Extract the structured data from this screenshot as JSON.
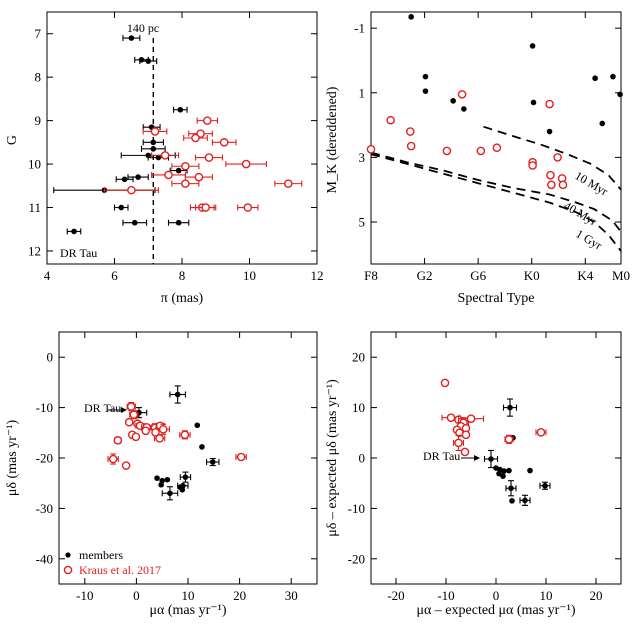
{
  "chart_data": [
    {
      "type": "scatter",
      "panel": "top-left",
      "xlabel": "π (mas)",
      "ylabel": "G",
      "xlim": [
        4,
        12
      ],
      "ylim": [
        12.3,
        6.5
      ],
      "y_inverted": true,
      "xticks": [
        4,
        6,
        8,
        10,
        12
      ],
      "yticks": [
        7,
        8,
        9,
        10,
        11,
        12
      ],
      "vline": {
        "x": 7.15,
        "label": "140 pc"
      },
      "annotation": {
        "text": "DR Tau",
        "x": 4.8,
        "y": 11.55
      },
      "series": [
        {
          "name": "members",
          "color": "#000000",
          "marker": "filled",
          "points": [
            {
              "x": 6.5,
              "y": 7.1,
              "xerr": 0.25
            },
            {
              "x": 6.8,
              "y": 7.6,
              "xerr": 0.2
            },
            {
              "x": 7.0,
              "y": 7.63,
              "xerr": 0.25
            },
            {
              "x": 7.95,
              "y": 8.75,
              "xerr": 0.2
            },
            {
              "x": 7.1,
              "y": 9.15,
              "xerr": 0.25
            },
            {
              "x": 7.15,
              "y": 9.5,
              "xerr": 0.3
            },
            {
              "x": 7.15,
              "y": 9.65,
              "xerr": 0.35
            },
            {
              "x": 7.0,
              "y": 9.8,
              "xerr": 0.8
            },
            {
              "x": 7.3,
              "y": 9.85,
              "xerr": 0.3
            },
            {
              "x": 7.9,
              "y": 10.15,
              "xerr": 0.25
            },
            {
              "x": 6.7,
              "y": 10.3,
              "xerr": 0.3
            },
            {
              "x": 6.3,
              "y": 10.35,
              "xerr": 0.25
            },
            {
              "x": 5.7,
              "y": 10.6,
              "xerr": 1.5
            },
            {
              "x": 6.2,
              "y": 11.0,
              "xerr": 0.2
            },
            {
              "x": 6.6,
              "y": 11.35,
              "xerr": 0.35
            },
            {
              "x": 7.9,
              "y": 11.35,
              "xerr": 0.3
            },
            {
              "x": 4.8,
              "y": 11.55,
              "xerr": 0.2
            }
          ]
        },
        {
          "name": "Kraus et al. 2017",
          "color": "#e0201f",
          "marker": "open",
          "points": [
            {
              "x": 8.75,
              "y": 9.0,
              "xerr": 0.3
            },
            {
              "x": 7.2,
              "y": 9.25,
              "xerr": 0.35
            },
            {
              "x": 8.55,
              "y": 9.3,
              "xerr": 0.35
            },
            {
              "x": 8.4,
              "y": 9.4,
              "xerr": 0.35
            },
            {
              "x": 9.25,
              "y": 9.5,
              "xerr": 0.35
            },
            {
              "x": 7.5,
              "y": 9.8,
              "xerr": 0.4
            },
            {
              "x": 8.8,
              "y": 9.85,
              "xerr": 0.4
            },
            {
              "x": 9.9,
              "y": 10.0,
              "xerr": 0.6
            },
            {
              "x": 8.1,
              "y": 10.05,
              "xerr": 0.4
            },
            {
              "x": 7.6,
              "y": 10.25,
              "xerr": 0.5
            },
            {
              "x": 8.5,
              "y": 10.3,
              "xerr": 0.4
            },
            {
              "x": 8.1,
              "y": 10.45,
              "xerr": 0.4
            },
            {
              "x": 11.15,
              "y": 10.45,
              "xerr": 0.4
            },
            {
              "x": 6.5,
              "y": 10.6,
              "xerr": 0.8
            },
            {
              "x": 8.6,
              "y": 11.0,
              "xerr": 0.35
            },
            {
              "x": 8.7,
              "y": 11.0,
              "xerr": 0.3
            },
            {
              "x": 9.95,
              "y": 11.0,
              "xerr": 0.3
            }
          ]
        }
      ]
    },
    {
      "type": "scatter",
      "panel": "top-right",
      "xlabel": "Spectral Type",
      "ylabel": "M_K (dereddened)",
      "xlim": [
        0,
        14
      ],
      "ylim": [
        6.3,
        -1.5
      ],
      "y_inverted": true,
      "xticks": [
        0,
        2,
        4,
        6,
        8,
        10,
        12,
        14
      ],
      "xticklabels": [
        "F8",
        "G2",
        "G6",
        "K0",
        "K4",
        "M0"
      ],
      "xticklabel_positions": [
        0,
        3,
        6,
        9,
        12,
        14
      ],
      "yticks": [
        -1,
        1,
        3,
        5
      ],
      "yticklabels": [
        "-1",
        "1",
        "3",
        "5"
      ],
      "isochrones": [
        {
          "label": "10 Myr",
          "points": [
            [
              6.3,
              2.05
            ],
            [
              8.0,
              2.35
            ],
            [
              9.5,
              2.6
            ],
            [
              11.0,
              2.9
            ],
            [
              12.3,
              3.2
            ],
            [
              13.3,
              3.55
            ],
            [
              14.0,
              4.0
            ]
          ]
        },
        {
          "label": "40 Myr",
          "points": [
            [
              0.0,
              2.85
            ],
            [
              2.0,
              3.15
            ],
            [
              4.0,
              3.4
            ],
            [
              6.0,
              3.7
            ],
            [
              8.0,
              3.95
            ],
            [
              10.0,
              4.15
            ],
            [
              11.5,
              4.4
            ],
            [
              12.5,
              4.6
            ],
            [
              13.5,
              4.95
            ],
            [
              14.0,
              5.3
            ]
          ]
        },
        {
          "label": "1 Gyr",
          "points": [
            [
              0.0,
              2.9
            ],
            [
              2.0,
              3.2
            ],
            [
              4.0,
              3.5
            ],
            [
              6.0,
              3.8
            ],
            [
              8.0,
              4.1
            ],
            [
              10.0,
              4.4
            ],
            [
              11.5,
              4.7
            ],
            [
              12.5,
              5.0
            ],
            [
              13.3,
              5.4
            ],
            [
              14.0,
              5.9
            ]
          ]
        }
      ],
      "series": [
        {
          "name": "members",
          "color": "#000000",
          "marker": "filled",
          "points": [
            {
              "x": 2.25,
              "y": -1.35
            },
            {
              "x": 3.05,
              "y": 0.5
            },
            {
              "x": 3.05,
              "y": 0.95
            },
            {
              "x": 4.6,
              "y": 1.25
            },
            {
              "x": 5.2,
              "y": 1.5
            },
            {
              "x": 9.05,
              "y": -0.45
            },
            {
              "x": 9.1,
              "y": 1.3
            },
            {
              "x": 10.0,
              "y": 2.2
            },
            {
              "x": 12.55,
              "y": 0.55
            },
            {
              "x": 12.95,
              "y": 1.95
            },
            {
              "x": 13.55,
              "y": 0.5
            },
            {
              "x": 13.95,
              "y": 1.05
            }
          ]
        },
        {
          "name": "Kraus et al. 2017",
          "color": "#e0201f",
          "marker": "open",
          "points": [
            {
              "x": 0.0,
              "y": 2.75
            },
            {
              "x": 1.1,
              "y": 1.85
            },
            {
              "x": 2.2,
              "y": 2.2
            },
            {
              "x": 2.25,
              "y": 2.65
            },
            {
              "x": 4.25,
              "y": 2.8
            },
            {
              "x": 5.1,
              "y": 1.05
            },
            {
              "x": 6.15,
              "y": 2.8
            },
            {
              "x": 7.05,
              "y": 2.7
            },
            {
              "x": 9.05,
              "y": 3.15
            },
            {
              "x": 9.05,
              "y": 3.25
            },
            {
              "x": 10.0,
              "y": 1.35
            },
            {
              "x": 10.05,
              "y": 3.55
            },
            {
              "x": 10.1,
              "y": 3.85
            },
            {
              "x": 10.45,
              "y": 3.0
            },
            {
              "x": 10.7,
              "y": 3.65
            },
            {
              "x": 10.75,
              "y": 3.85
            }
          ]
        }
      ]
    },
    {
      "type": "scatter",
      "panel": "bottom-left",
      "xlabel": "μα (mas yr⁻¹)",
      "ylabel": "μδ (mas yr⁻¹)",
      "xlim": [
        -15,
        35
      ],
      "ylim": [
        -45,
        5
      ],
      "xticks": [
        -10,
        0,
        10,
        20,
        30
      ],
      "yticks": [
        0,
        -10,
        -20,
        -30,
        -40
      ],
      "annotation": {
        "text": "DR Tau",
        "x": 0.5,
        "y": -11.0
      },
      "legend": {
        "position": "bottom-left",
        "entries": [
          "members",
          "Kraus et al. 2017"
        ]
      },
      "series": [
        {
          "name": "members",
          "color": "#000000",
          "marker": "filled",
          "points": [
            {
              "x": 0.5,
              "y": -11.0,
              "xerr": 1.5,
              "yerr": 1.0
            },
            {
              "x": 8.0,
              "y": -7.4,
              "xerr": 1.5,
              "yerr": 1.7
            },
            {
              "x": 11.8,
              "y": -13.5
            },
            {
              "x": 12.7,
              "y": -17.8
            },
            {
              "x": 14.8,
              "y": -20.8,
              "xerr": 1.2,
              "yerr": 0.7
            },
            {
              "x": 9.5,
              "y": -23.8,
              "xerr": 1.0,
              "yerr": 1.0
            },
            {
              "x": 4.0,
              "y": -24.0
            },
            {
              "x": 5.0,
              "y": -24.5
            },
            {
              "x": 6.0,
              "y": -24.3
            },
            {
              "x": 4.8,
              "y": -25.3
            },
            {
              "x": 9.0,
              "y": -25.5,
              "xerr": 1.0
            },
            {
              "x": 8.5,
              "y": -25.8
            },
            {
              "x": 8.9,
              "y": -26.3
            },
            {
              "x": 6.5,
              "y": -27.0,
              "xerr": 1.5,
              "yerr": 1.3
            }
          ]
        },
        {
          "name": "Kraus et al. 2017",
          "color": "#e0201f",
          "marker": "open",
          "points": [
            {
              "x": -1.0,
              "y": -9.8,
              "xerr": 0.8,
              "yerr": 0.8
            },
            {
              "x": -0.5,
              "y": -11.4,
              "xerr": 0.8,
              "yerr": 0.8
            },
            {
              "x": -1.4,
              "y": -12.9
            },
            {
              "x": 0.2,
              "y": -13.2
            },
            {
              "x": 0.7,
              "y": -13.6,
              "xerr": 0.8
            },
            {
              "x": 2.0,
              "y": -13.9,
              "xerr": 1.0
            },
            {
              "x": 3.6,
              "y": -14.0,
              "xerr": 0.8,
              "yerr": 0.8
            },
            {
              "x": 4.6,
              "y": -13.6,
              "xerr": 0.8
            },
            {
              "x": 5.2,
              "y": -14.3,
              "xerr": 1.2,
              "yerr": 1.0
            },
            {
              "x": 3.7,
              "y": -14.9
            },
            {
              "x": 1.8,
              "y": -14.6
            },
            {
              "x": -0.8,
              "y": -15.4
            },
            {
              "x": -0.1,
              "y": -15.8
            },
            {
              "x": 4.5,
              "y": -16.1,
              "xerr": 1.0
            },
            {
              "x": -3.6,
              "y": -16.5,
              "xerr": 0.6,
              "yerr": 0.6
            },
            {
              "x": 9.4,
              "y": -15.4,
              "xerr": 1.0,
              "yerr": 0.8
            },
            {
              "x": -4.5,
              "y": -20.2,
              "xerr": 1.0,
              "yerr": 1.0
            },
            {
              "x": -2.0,
              "y": -21.5
            },
            {
              "x": 20.3,
              "y": -19.8,
              "xerr": 1.0
            }
          ]
        }
      ]
    },
    {
      "type": "scatter",
      "panel": "bottom-right",
      "xlabel": "μα – expected μα (mas yr⁻¹)",
      "ylabel": "μδ – expected μδ (mas yr⁻¹)",
      "xlim": [
        -25,
        25
      ],
      "ylim": [
        -25,
        25
      ],
      "xticks": [
        -20,
        -10,
        0,
        10,
        20
      ],
      "yticks": [
        20,
        10,
        0,
        -10,
        -20
      ],
      "annotation": {
        "text": "DR Tau",
        "x": -1.0,
        "y": -0.2
      },
      "series": [
        {
          "name": "members",
          "color": "#000000",
          "marker": "filled",
          "points": [
            {
              "x": -1.0,
              "y": -0.2,
              "xerr": 1.3,
              "yerr": 1.7
            },
            {
              "x": 2.8,
              "y": 10.0,
              "xerr": 1.3,
              "yerr": 1.7
            },
            {
              "x": 3.4,
              "y": 4.0
            },
            {
              "x": 6.8,
              "y": -2.5
            },
            {
              "x": 0.0,
              "y": -2.0
            },
            {
              "x": 0.8,
              "y": -2.3
            },
            {
              "x": 1.6,
              "y": -2.6
            },
            {
              "x": 2.6,
              "y": -2.5
            },
            {
              "x": 0.6,
              "y": -3.1
            },
            {
              "x": 1.4,
              "y": -3.6
            },
            {
              "x": 3.0,
              "y": -6.0,
              "xerr": 1.0,
              "yerr": 1.5
            },
            {
              "x": 3.2,
              "y": -8.5
            },
            {
              "x": 5.8,
              "y": -8.4,
              "xerr": 1.0,
              "yerr": 1.0
            },
            {
              "x": 9.8,
              "y": -5.5,
              "xerr": 1.0,
              "yerr": 0.7
            }
          ]
        },
        {
          "name": "Kraus et al. 2017",
          "color": "#e0201f",
          "marker": "open",
          "points": [
            {
              "x": -10.2,
              "y": 14.9,
              "xerr": 0.5
            },
            {
              "x": -9.0,
              "y": 8.0,
              "xerr": 1.8
            },
            {
              "x": -7.5,
              "y": 7.6
            },
            {
              "x": -6.5,
              "y": 7.0,
              "xerr": 1.0,
              "yerr": 1.0
            },
            {
              "x": -5.0,
              "y": 7.8,
              "xerr": 2.5
            },
            {
              "x": -7.0,
              "y": 6.3
            },
            {
              "x": -7.8,
              "y": 5.6
            },
            {
              "x": -6.0,
              "y": 5.9
            },
            {
              "x": -7.3,
              "y": 5.0
            },
            {
              "x": -6.0,
              "y": 4.6
            },
            {
              "x": -7.5,
              "y": 3.0,
              "xerr": 1.0,
              "yerr": 1.5
            },
            {
              "x": -6.2,
              "y": 1.2
            },
            {
              "x": 2.6,
              "y": 3.7,
              "xerr": 0.8,
              "yerr": 0.8
            },
            {
              "x": 9.0,
              "y": 5.1,
              "xerr": 1.0
            }
          ]
        }
      ]
    }
  ]
}
